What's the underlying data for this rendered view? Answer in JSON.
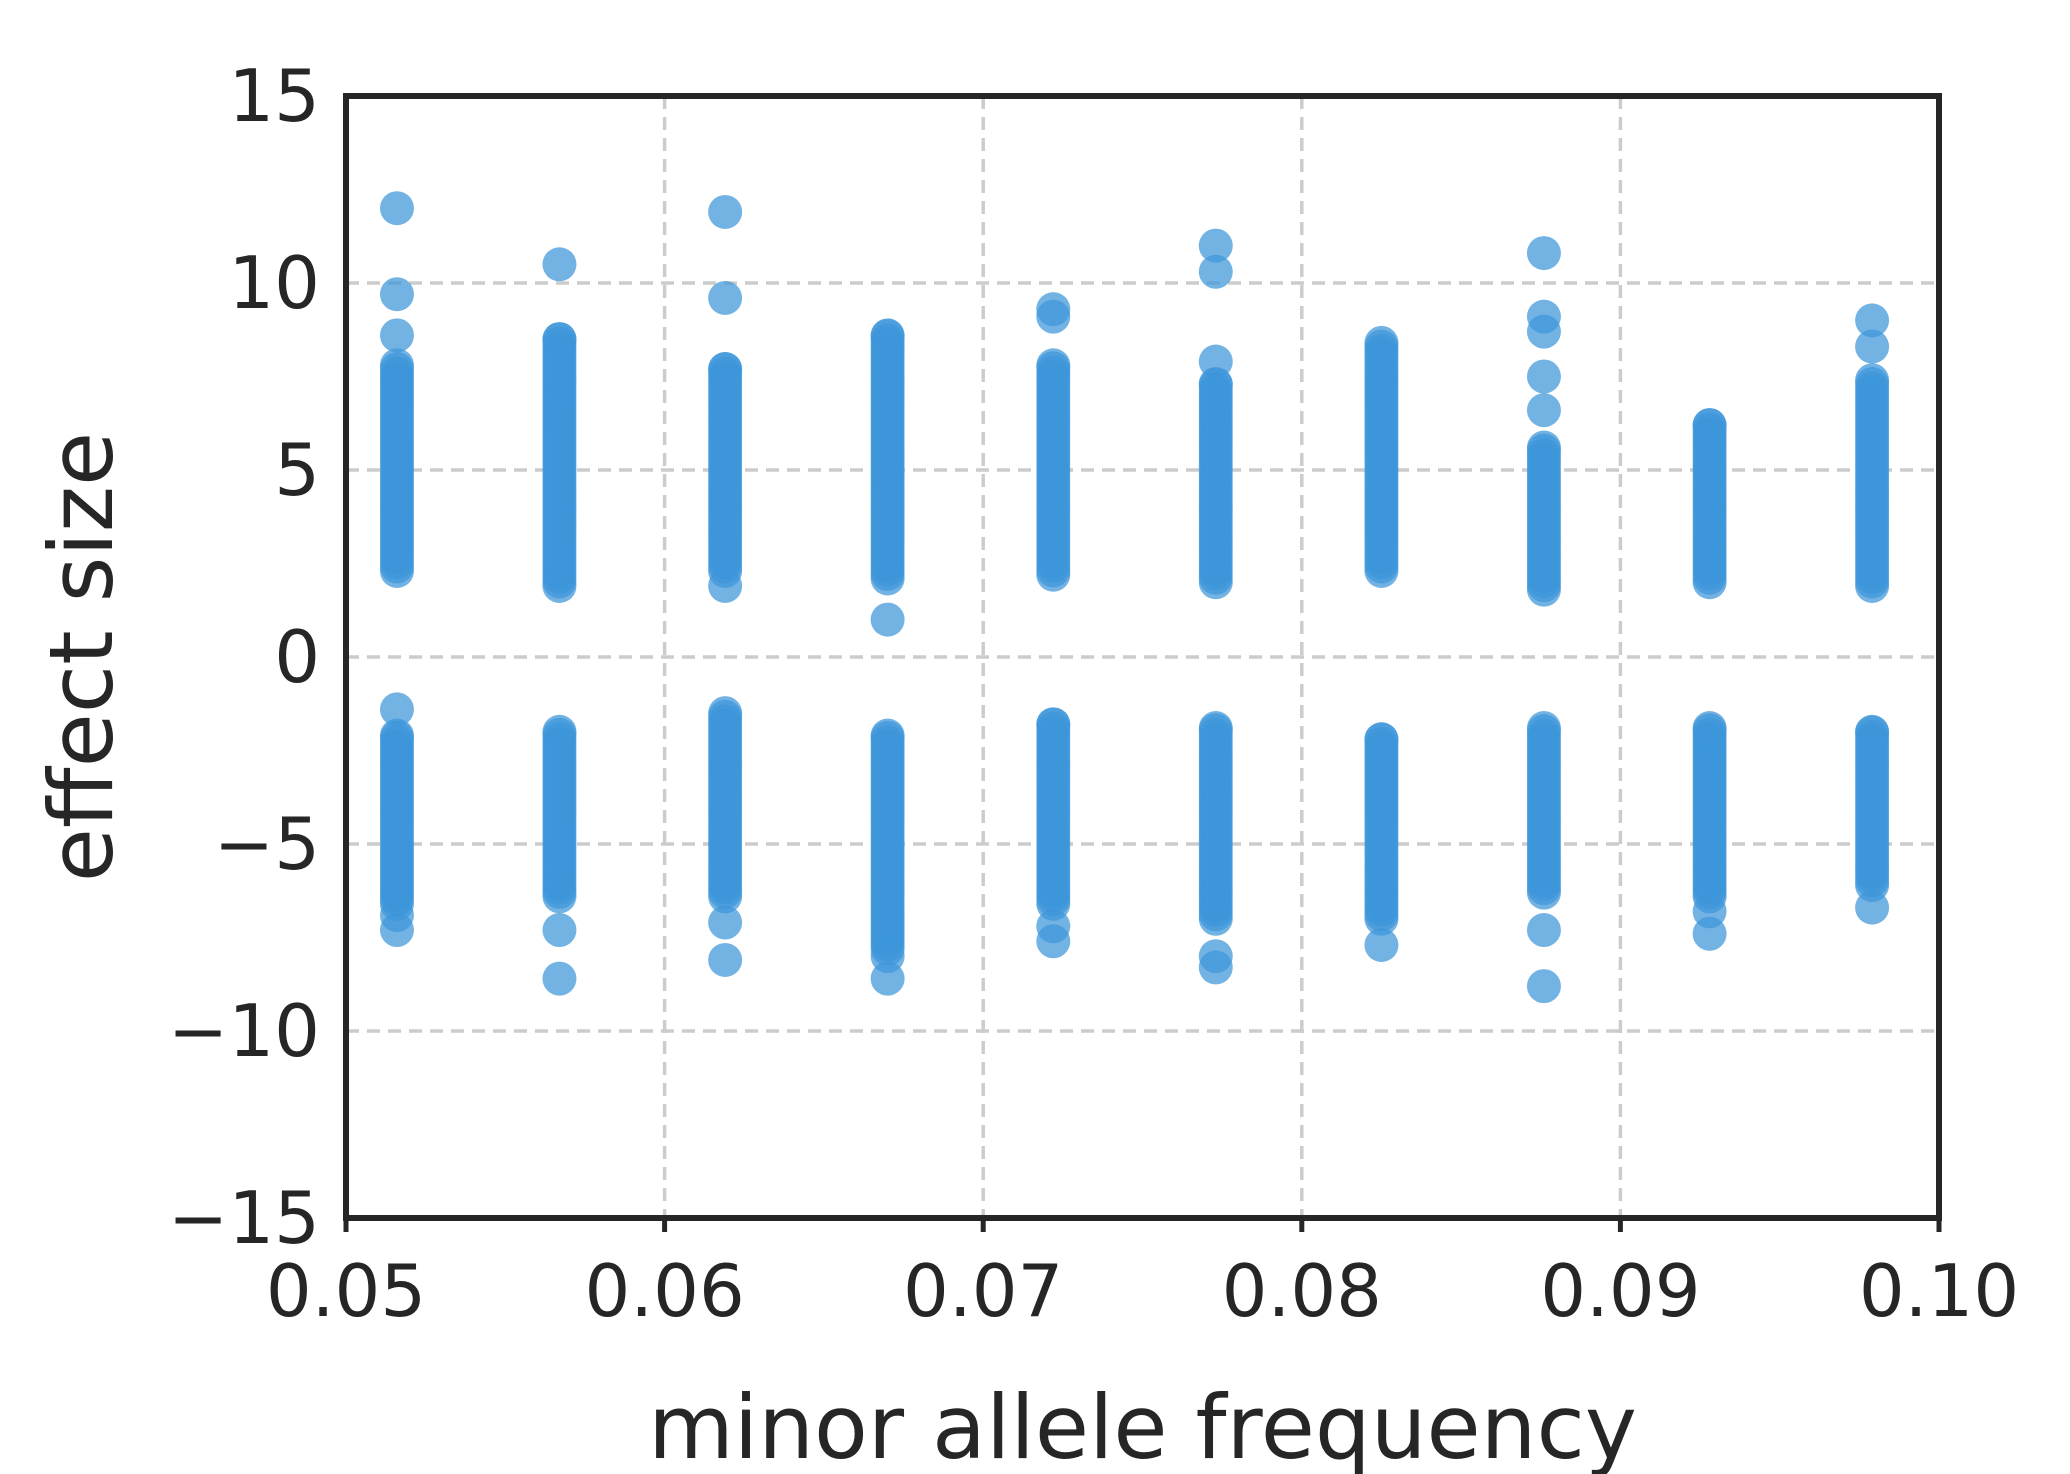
{
  "chart_data": {
    "type": "scatter",
    "title": "",
    "xlabel": "minor allele frequency",
    "ylabel": "effect size",
    "xlim": [
      0.05,
      0.1
    ],
    "ylim": [
      -15,
      15
    ],
    "xticks": [
      0.05,
      0.06,
      0.07,
      0.08,
      0.09,
      0.1
    ],
    "xtick_labels": [
      "0.05",
      "0.06",
      "0.07",
      "0.08",
      "0.09",
      "0.10"
    ],
    "yticks": [
      -15,
      -10,
      -5,
      0,
      5,
      10,
      15
    ],
    "ytick_labels": [
      "−15",
      "−10",
      "−5",
      "0",
      "5",
      "10",
      "15"
    ],
    "grid": true,
    "grid_style": "dashed",
    "legend": false,
    "point_color": "#3d95d9",
    "point_opacity": 0.72,
    "groups": [
      {
        "x": 0.0516,
        "positive_range": [
          2.3,
          7.8
        ],
        "negative_range": [
          -6.6,
          -2.1
        ],
        "outliers": [
          12.0,
          9.7,
          8.6,
          -1.4,
          -6.9,
          -7.3
        ]
      },
      {
        "x": 0.0567,
        "positive_range": [
          1.9,
          8.5
        ],
        "negative_range": [
          -6.4,
          -2.0
        ],
        "outliers": [
          10.5,
          -7.3,
          -8.6
        ]
      },
      {
        "x": 0.0619,
        "positive_range": [
          2.3,
          7.7
        ],
        "negative_range": [
          -6.4,
          -1.5
        ],
        "outliers": [
          11.9,
          9.6,
          1.9,
          -7.1,
          -8.1
        ]
      },
      {
        "x": 0.067,
        "positive_range": [
          2.1,
          8.6
        ],
        "negative_range": [
          -7.8,
          -2.1
        ],
        "outliers": [
          1.0,
          -8.0,
          -8.6
        ]
      },
      {
        "x": 0.0722,
        "positive_range": [
          2.2,
          7.8
        ],
        "negative_range": [
          -6.6,
          -1.8
        ],
        "outliers": [
          9.3,
          9.1,
          -7.2,
          -7.6
        ]
      },
      {
        "x": 0.0773,
        "positive_range": [
          2.0,
          7.3
        ],
        "negative_range": [
          -7.0,
          -1.9
        ],
        "outliers": [
          11.0,
          10.3,
          7.9,
          -8.0,
          -8.3
        ]
      },
      {
        "x": 0.0825,
        "positive_range": [
          2.3,
          8.4
        ],
        "negative_range": [
          -7.0,
          -2.2
        ],
        "outliers": [
          -7.7
        ]
      },
      {
        "x": 0.0876,
        "positive_range": [
          1.8,
          5.6
        ],
        "negative_range": [
          -6.3,
          -1.9
        ],
        "outliers": [
          10.8,
          9.1,
          8.7,
          7.5,
          6.6,
          -7.3,
          -8.8
        ]
      },
      {
        "x": 0.0928,
        "positive_range": [
          2.0,
          6.2
        ],
        "negative_range": [
          -6.4,
          -1.9
        ],
        "outliers": [
          -6.8,
          -7.4
        ]
      },
      {
        "x": 0.0979,
        "positive_range": [
          1.9,
          7.4
        ],
        "negative_range": [
          -6.1,
          -2.0
        ],
        "outliers": [
          9.0,
          8.3,
          -6.7
        ]
      }
    ]
  }
}
